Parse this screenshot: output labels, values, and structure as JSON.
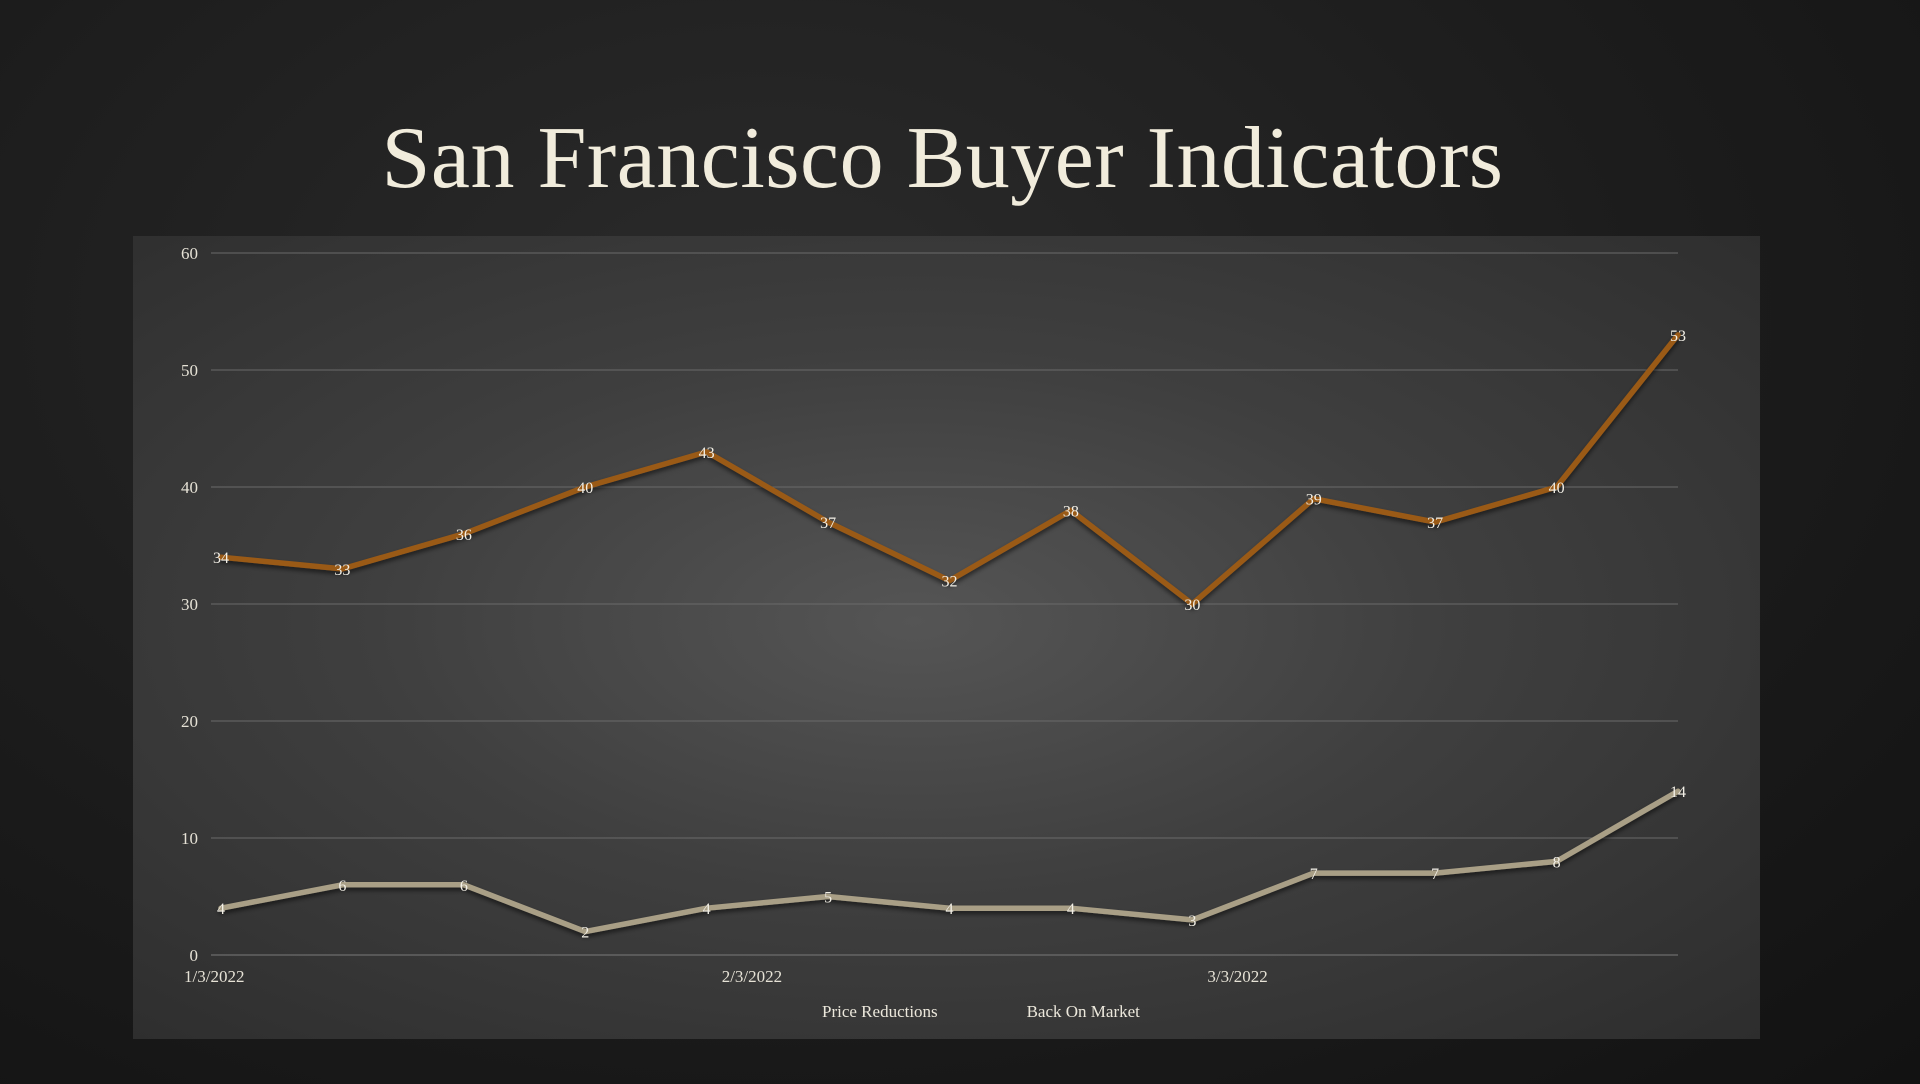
{
  "slide": {
    "title": "San Francisco Buyer Indicators"
  },
  "colors": {
    "background": "#1c1c1c",
    "panel": "#444444",
    "title": "#f1ecdc",
    "grid": "#6a6a6a"
  },
  "chart_data": {
    "type": "line",
    "x": [
      "1/3/2022",
      "1/10/2022",
      "1/17/2022",
      "1/24/2022",
      "1/31/2022",
      "2/7/2022",
      "2/14/2022",
      "2/21/2022",
      "2/28/2022",
      "3/7/2022",
      "3/14/2022",
      "3/21/2022",
      "3/28/2022"
    ],
    "x_tick_labels": [
      {
        "label": "1/3/2022",
        "x": "1/3/2022"
      },
      {
        "label": "2/3/2022",
        "x": "2/3/2022"
      },
      {
        "label": "3/3/2022",
        "x": "3/3/2022"
      }
    ],
    "ylim": [
      0,
      60
    ],
    "yticks": [
      0,
      10,
      20,
      30,
      40,
      50,
      60
    ],
    "grid": true,
    "legend_position": "bottom",
    "series": [
      {
        "name": "Price Reductions",
        "color": "#9a5a18",
        "values": [
          34,
          33,
          36,
          40,
          43,
          37,
          32,
          38,
          30,
          39,
          37,
          40,
          53
        ]
      },
      {
        "name": "Back On Market",
        "color": "#a99f86",
        "values": [
          4,
          6,
          6,
          2,
          4,
          5,
          4,
          4,
          3,
          7,
          7,
          8,
          14
        ]
      }
    ]
  }
}
